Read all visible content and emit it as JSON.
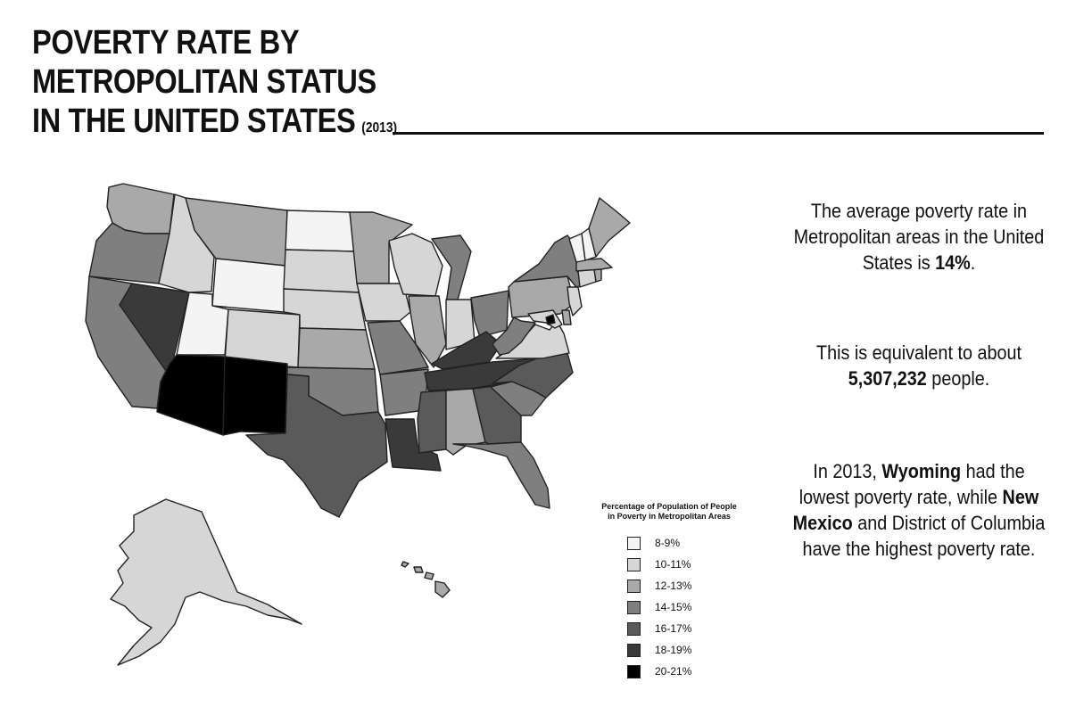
{
  "title": {
    "line1": "POVERTY RATE BY",
    "line2": "METROPOLITAN STATUS",
    "line3": "IN THE UNITED STATES",
    "year": "(2013)"
  },
  "stats": {
    "s1_pre": "The average poverty rate in Metropolitan areas in the United States is ",
    "s1_bold": "14%",
    "s1_post": ".",
    "s2_pre": "This is equivalent to about ",
    "s2_bold": "5,307,232",
    "s2_post": " people.",
    "s3_pre": "In 2013, ",
    "s3_bold1": "Wyoming",
    "s3_mid1": " had the lowest poverty rate, while ",
    "s3_bold2": "New Mexico",
    "s3_mid2": " and District of Columbia have the highest poverty rate."
  },
  "legend": {
    "title": "Percentage of Population of People\nin Poverty in Metropolitan Areas",
    "items": [
      {
        "label": "8-9%",
        "color": "#f4f4f4"
      },
      {
        "label": "10-11%",
        "color": "#d6d6d6"
      },
      {
        "label": "12-13%",
        "color": "#a9a9a9"
      },
      {
        "label": "14-15%",
        "color": "#7f7f7f"
      },
      {
        "label": "16-17%",
        "color": "#5a5a5a"
      },
      {
        "label": "18-19%",
        "color": "#3a3a3a"
      },
      {
        "label": "20-21%",
        "color": "#000000"
      }
    ]
  },
  "map_data": {
    "WA": 2,
    "OR": 3,
    "CA": 3,
    "NV": 5,
    "ID": 1,
    "MT": 2,
    "WY": 0,
    "UT": 0,
    "AZ": 6,
    "NM": 6,
    "CO": 1,
    "ND": 0,
    "SD": 1,
    "NE": 1,
    "KS": 2,
    "OK": 3,
    "TX": 4,
    "MN": 2,
    "IA": 1,
    "MO": 3,
    "AR": 3,
    "LA": 5,
    "WI": 1,
    "IL": 2,
    "MI": 3,
    "IN": 1,
    "OH": 3,
    "KY": 5,
    "TN": 5,
    "MS": 4,
    "AL": 2,
    "GA": 4,
    "FL": 3,
    "SC": 3,
    "NC": 4,
    "VA": 1,
    "WV": 3,
    "PA": 2,
    "NY": 3,
    "VT": 0,
    "NH": 0,
    "ME": 2,
    "MA": 2,
    "CT": 1,
    "NJ": 1,
    "DE": 2,
    "MD": 1,
    "RI": 2,
    "DC": 6,
    "AK": 1,
    "HI": 2
  }
}
